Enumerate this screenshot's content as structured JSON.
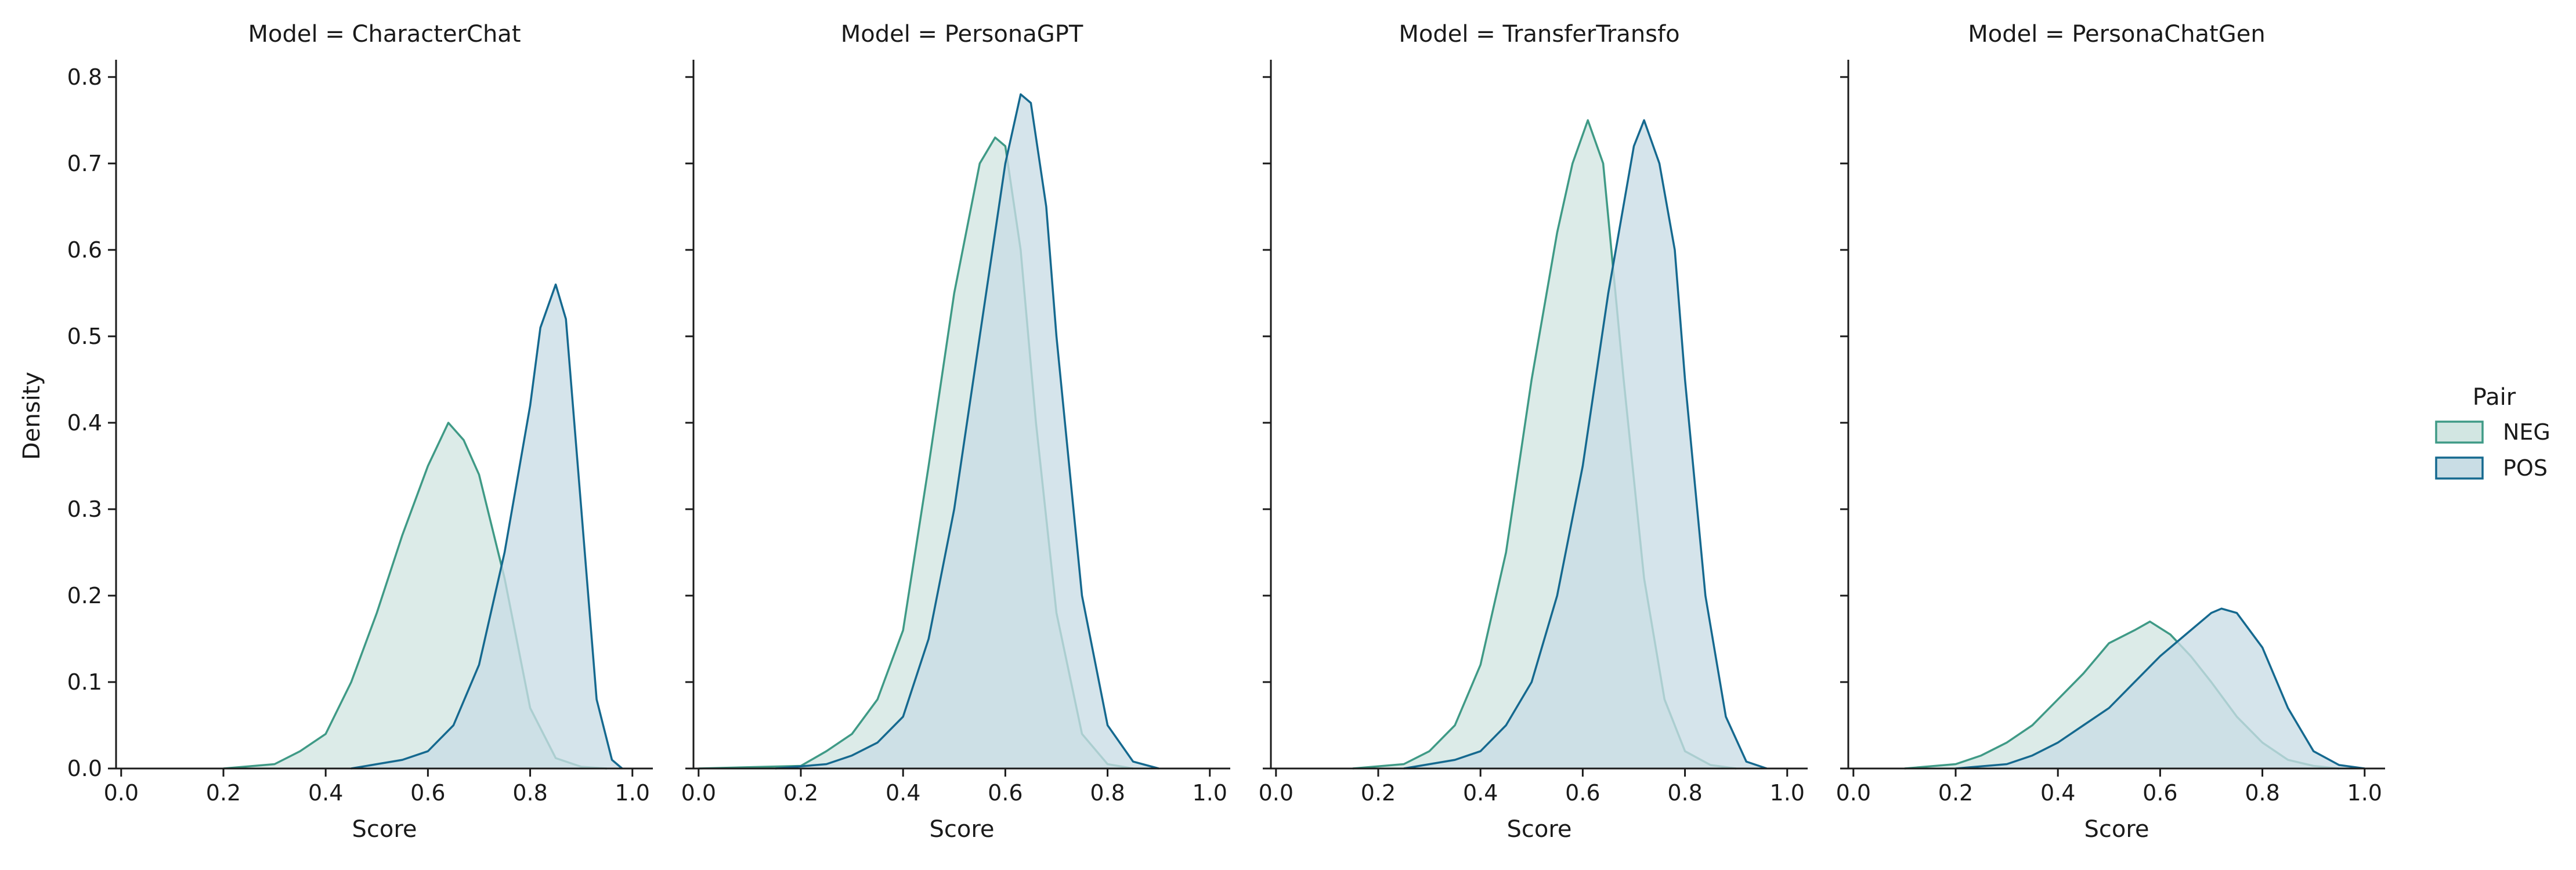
{
  "chart_data": {
    "type": "area",
    "subtype": "kde-facet-grid",
    "facet_variable": "Model",
    "hue_variable": "Pair",
    "xlabel": "Score",
    "ylabel": "Density",
    "xlim": [
      -0.01,
      1.04
    ],
    "ylim": [
      0,
      0.82
    ],
    "xticks": [
      "0.0",
      "0.2",
      "0.4",
      "0.6",
      "0.8",
      "1.0"
    ],
    "yticks": [
      "0.0",
      "0.1",
      "0.2",
      "0.3",
      "0.4",
      "0.5",
      "0.6",
      "0.7",
      "0.8"
    ],
    "grid": false,
    "legend": {
      "title": "Pair",
      "placement": "right",
      "entries": [
        {
          "label": "NEG",
          "fill": "#d2e6e2",
          "stroke": "#3f9a86"
        },
        {
          "label": "POS",
          "fill": "#c9dde5",
          "stroke": "#15698f"
        }
      ]
    },
    "facets": [
      {
        "title": "Model = CharacterChat",
        "series": [
          {
            "name": "NEG",
            "x": [
              0.2,
              0.3,
              0.35,
              0.4,
              0.45,
              0.5,
              0.55,
              0.6,
              0.64,
              0.67,
              0.7,
              0.75,
              0.8,
              0.85,
              0.9,
              0.95
            ],
            "y": [
              0.0,
              0.005,
              0.02,
              0.04,
              0.1,
              0.18,
              0.27,
              0.35,
              0.4,
              0.38,
              0.34,
              0.22,
              0.07,
              0.012,
              0.002,
              0.0
            ]
          },
          {
            "name": "POS",
            "x": [
              0.45,
              0.5,
              0.55,
              0.6,
              0.65,
              0.7,
              0.75,
              0.8,
              0.82,
              0.85,
              0.87,
              0.9,
              0.93,
              0.96,
              0.98
            ],
            "y": [
              0.0,
              0.005,
              0.01,
              0.02,
              0.05,
              0.12,
              0.25,
              0.42,
              0.51,
              0.56,
              0.52,
              0.3,
              0.08,
              0.01,
              0.0
            ]
          }
        ]
      },
      {
        "title": "Model = PersonaGPT",
        "series": [
          {
            "name": "NEG",
            "x": [
              0.0,
              0.2,
              0.25,
              0.3,
              0.35,
              0.4,
              0.45,
              0.5,
              0.55,
              0.58,
              0.6,
              0.63,
              0.66,
              0.7,
              0.75,
              0.8,
              0.85
            ],
            "y": [
              0.0,
              0.003,
              0.02,
              0.04,
              0.08,
              0.16,
              0.35,
              0.55,
              0.7,
              0.73,
              0.72,
              0.6,
              0.4,
              0.18,
              0.04,
              0.005,
              0.0
            ]
          },
          {
            "name": "POS",
            "x": [
              0.15,
              0.25,
              0.3,
              0.35,
              0.4,
              0.45,
              0.5,
              0.55,
              0.6,
              0.63,
              0.65,
              0.68,
              0.7,
              0.75,
              0.8,
              0.85,
              0.9
            ],
            "y": [
              0.0,
              0.005,
              0.015,
              0.03,
              0.06,
              0.15,
              0.3,
              0.5,
              0.7,
              0.78,
              0.77,
              0.65,
              0.5,
              0.2,
              0.05,
              0.008,
              0.0
            ]
          }
        ]
      },
      {
        "title": "Model = TransferTransfo",
        "series": [
          {
            "name": "NEG",
            "x": [
              0.15,
              0.25,
              0.3,
              0.35,
              0.4,
              0.45,
              0.5,
              0.55,
              0.58,
              0.61,
              0.64,
              0.68,
              0.72,
              0.76,
              0.8,
              0.85,
              0.9
            ],
            "y": [
              0.0,
              0.005,
              0.02,
              0.05,
              0.12,
              0.25,
              0.45,
              0.62,
              0.7,
              0.75,
              0.7,
              0.45,
              0.22,
              0.08,
              0.02,
              0.004,
              0.0
            ]
          },
          {
            "name": "POS",
            "x": [
              0.25,
              0.35,
              0.4,
              0.45,
              0.5,
              0.55,
              0.6,
              0.65,
              0.7,
              0.72,
              0.75,
              0.78,
              0.8,
              0.84,
              0.88,
              0.92,
              0.96
            ],
            "y": [
              0.0,
              0.01,
              0.02,
              0.05,
              0.1,
              0.2,
              0.35,
              0.55,
              0.72,
              0.75,
              0.7,
              0.6,
              0.45,
              0.2,
              0.06,
              0.008,
              0.0
            ]
          }
        ]
      },
      {
        "title": "Model = PersonaChatGen",
        "series": [
          {
            "name": "NEG",
            "x": [
              0.1,
              0.2,
              0.25,
              0.3,
              0.35,
              0.4,
              0.45,
              0.5,
              0.55,
              0.58,
              0.62,
              0.66,
              0.7,
              0.75,
              0.8,
              0.85,
              0.9,
              0.95
            ],
            "y": [
              0.0,
              0.005,
              0.015,
              0.03,
              0.05,
              0.08,
              0.11,
              0.145,
              0.16,
              0.17,
              0.155,
              0.13,
              0.1,
              0.06,
              0.03,
              0.01,
              0.003,
              0.0
            ]
          },
          {
            "name": "POS",
            "x": [
              0.2,
              0.3,
              0.35,
              0.4,
              0.45,
              0.5,
              0.55,
              0.6,
              0.65,
              0.7,
              0.72,
              0.75,
              0.8,
              0.85,
              0.9,
              0.95,
              1.0
            ],
            "y": [
              0.0,
              0.005,
              0.015,
              0.03,
              0.05,
              0.07,
              0.1,
              0.13,
              0.155,
              0.18,
              0.185,
              0.18,
              0.14,
              0.07,
              0.02,
              0.004,
              0.0
            ]
          }
        ]
      }
    ]
  }
}
